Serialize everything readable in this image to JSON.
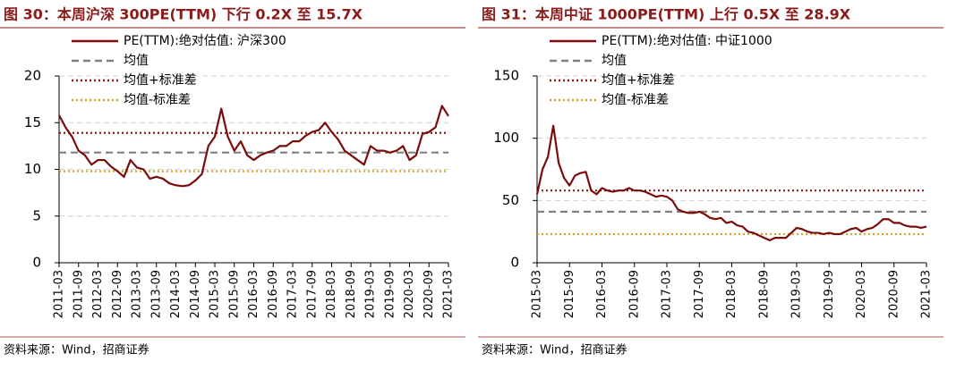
{
  "chart_data": [
    {
      "type": "line",
      "title": "图 30：本周沪深 300PE(TTM) 下行 0.2X 至 15.7X",
      "source": "资料来源：Wind，招商证券",
      "x": [
        "2011-03",
        "2011-05",
        "2011-07",
        "2011-09",
        "2011-11",
        "2012-01",
        "2012-03",
        "2012-05",
        "2012-07",
        "2012-09",
        "2012-11",
        "2013-01",
        "2013-03",
        "2013-05",
        "2013-07",
        "2013-09",
        "2013-11",
        "2014-01",
        "2014-03",
        "2014-05",
        "2014-07",
        "2014-09",
        "2014-11",
        "2015-01",
        "2015-03",
        "2015-05",
        "2015-07",
        "2015-09",
        "2015-11",
        "2016-01",
        "2016-03",
        "2016-05",
        "2016-07",
        "2016-09",
        "2016-11",
        "2017-01",
        "2017-03",
        "2017-05",
        "2017-07",
        "2017-09",
        "2017-11",
        "2018-01",
        "2018-03",
        "2018-05",
        "2018-07",
        "2018-09",
        "2018-11",
        "2019-01",
        "2019-03",
        "2019-05",
        "2019-07",
        "2019-09",
        "2019-11",
        "2020-01",
        "2020-03",
        "2020-05",
        "2020-07",
        "2020-09",
        "2020-11",
        "2021-01",
        "2021-03"
      ],
      "series": [
        {
          "name": "PE(TTM):绝对估值: 沪深300",
          "color": "#7b0c0c",
          "values": [
            15.8,
            14.5,
            13.5,
            12.0,
            11.5,
            10.5,
            11.0,
            11.0,
            10.3,
            9.8,
            9.2,
            11.0,
            10.2,
            10.0,
            9.0,
            9.2,
            9.0,
            8.5,
            8.3,
            8.2,
            8.3,
            8.8,
            9.5,
            12.5,
            13.5,
            16.5,
            13.5,
            12.0,
            13.0,
            11.5,
            11.0,
            11.5,
            11.8,
            12.0,
            12.5,
            12.5,
            13.0,
            13.0,
            13.6,
            14.0,
            14.2,
            15.0,
            14.0,
            13.2,
            12.0,
            11.5,
            11.0,
            10.5,
            12.5,
            12.0,
            12.0,
            11.8,
            12.0,
            12.5,
            11.0,
            11.5,
            13.8,
            14.0,
            14.5,
            16.8,
            15.7
          ]
        }
      ],
      "reference_lines": [
        {
          "name": "均值",
          "color": "#808080",
          "style": "dashed",
          "value": 11.8
        },
        {
          "name": "均值+标准差",
          "color": "#8b1a1a",
          "style": "dotted",
          "value": 13.9
        },
        {
          "name": "均值-标准差",
          "color": "#d4a02a",
          "style": "dotted",
          "value": 9.8
        }
      ],
      "xlim": [
        "2011-03",
        "2021-03"
      ],
      "xticks": [
        "2011-03",
        "2011-09",
        "2012-03",
        "2012-09",
        "2013-03",
        "2013-09",
        "2014-03",
        "2014-09",
        "2015-03",
        "2015-09",
        "2016-03",
        "2016-09",
        "2017-03",
        "2017-09",
        "2018-03",
        "2018-09",
        "2019-03",
        "2019-09",
        "2020-03",
        "2020-09",
        "2021-03"
      ],
      "ylim": [
        0,
        20
      ],
      "yticks": [
        0,
        5,
        10,
        15,
        20
      ],
      "grid": true
    },
    {
      "type": "line",
      "title": "图 31：本周中证 1000PE(TTM) 上行 0.5X 至 28.9X",
      "source": "资料来源：Wind，招商证券",
      "x": [
        "2015-03",
        "2015-04",
        "2015-05",
        "2015-06",
        "2015-07",
        "2015-08",
        "2015-09",
        "2015-10",
        "2015-11",
        "2015-12",
        "2016-01",
        "2016-02",
        "2016-03",
        "2016-04",
        "2016-05",
        "2016-06",
        "2016-07",
        "2016-08",
        "2016-09",
        "2016-10",
        "2016-11",
        "2016-12",
        "2017-01",
        "2017-02",
        "2017-03",
        "2017-04",
        "2017-05",
        "2017-06",
        "2017-07",
        "2017-08",
        "2017-09",
        "2017-10",
        "2017-11",
        "2017-12",
        "2018-01",
        "2018-02",
        "2018-03",
        "2018-04",
        "2018-05",
        "2018-06",
        "2018-07",
        "2018-08",
        "2018-09",
        "2018-10",
        "2018-11",
        "2018-12",
        "2019-01",
        "2019-02",
        "2019-03",
        "2019-04",
        "2019-05",
        "2019-06",
        "2019-07",
        "2019-08",
        "2019-09",
        "2019-10",
        "2019-11",
        "2019-12",
        "2020-01",
        "2020-02",
        "2020-03",
        "2020-04",
        "2020-05",
        "2020-06",
        "2020-07",
        "2020-08",
        "2020-09",
        "2020-10",
        "2020-11",
        "2020-12",
        "2021-01",
        "2021-02",
        "2021-03"
      ],
      "series": [
        {
          "name": "PE(TTM):绝对估值: 中证1000",
          "color": "#7b0c0c",
          "values": [
            55,
            75,
            85,
            110,
            80,
            68,
            62,
            70,
            72,
            73,
            58,
            55,
            60,
            58,
            57,
            58,
            58,
            60,
            58,
            58,
            57,
            55,
            53,
            54,
            53,
            50,
            43,
            41,
            40,
            40,
            41,
            39,
            36,
            35,
            36,
            32,
            33,
            30,
            29,
            25,
            24,
            22,
            20,
            18,
            20,
            20,
            20,
            24,
            28,
            27,
            25,
            24,
            24,
            23,
            24,
            23,
            23,
            25,
            27,
            28,
            25,
            27,
            28,
            31,
            35,
            35,
            32,
            32,
            30,
            29,
            29,
            28,
            29
          ]
        }
      ],
      "reference_lines": [
        {
          "name": "均值",
          "color": "#808080",
          "style": "dashed",
          "value": 41
        },
        {
          "name": "均值+标准差",
          "color": "#8b1a1a",
          "style": "dotted",
          "value": 58
        },
        {
          "name": "均值-标准差",
          "color": "#d4a02a",
          "style": "dotted",
          "value": 23
        }
      ],
      "xlim": [
        "2015-03",
        "2021-03"
      ],
      "xticks": [
        "2015-03",
        "2015-09",
        "2016-03",
        "2016-09",
        "2017-03",
        "2017-09",
        "2018-03",
        "2018-09",
        "2019-03",
        "2019-09",
        "2020-03",
        "2020-09",
        "2021-03"
      ],
      "ylim": [
        0,
        150
      ],
      "yticks": [
        0,
        50,
        100,
        150
      ],
      "grid": true
    }
  ]
}
